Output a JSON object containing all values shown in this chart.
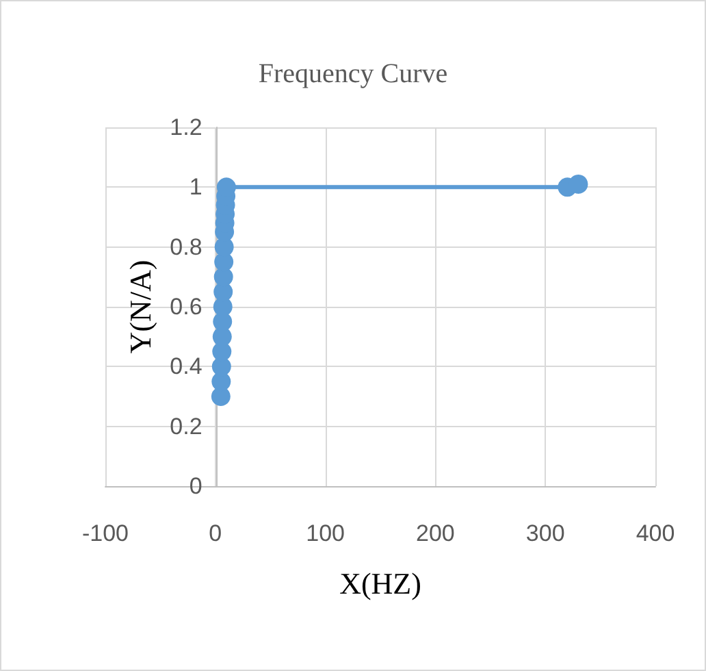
{
  "chart_data": {
    "type": "line",
    "title": "Frequency Curve",
    "xlabel": "X(HZ)",
    "ylabel": "Y(N/A)",
    "series": [
      {
        "color": "#5b9bd5",
        "x": [
          5,
          5.3,
          5.6,
          5.9,
          6.2,
          6.5,
          6.8,
          7.1,
          7.4,
          7.7,
          8,
          8.3,
          8.6,
          8.9,
          9.2,
          9.5,
          10,
          320,
          330
        ],
        "values": [
          0.3,
          0.35,
          0.4,
          0.45,
          0.5,
          0.55,
          0.6,
          0.65,
          0.7,
          0.75,
          0.8,
          0.85,
          0.88,
          0.91,
          0.94,
          0.97,
          1.0,
          1.0,
          1.01
        ]
      }
    ],
    "xlim": [
      -100,
      400
    ],
    "xticks": [
      -100,
      0,
      100,
      200,
      300,
      400
    ],
    "ylim": [
      0,
      1.2
    ],
    "yticks": [
      0,
      0.2,
      0.4,
      0.6,
      0.8,
      1,
      1.2
    ],
    "grid": true,
    "marker": "circle",
    "line_style": "solid"
  }
}
